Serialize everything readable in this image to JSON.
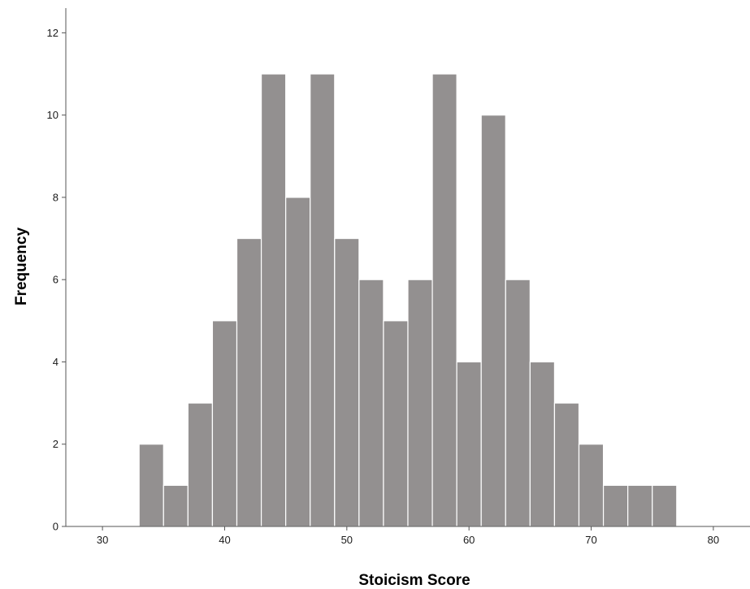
{
  "chart_data": {
    "type": "bar",
    "xlabel": "Stoicism Score",
    "ylabel": "Frequency",
    "xlim": [
      27,
      83
    ],
    "ylim": [
      0,
      12.6
    ],
    "xticks": [
      "30",
      "40",
      "50",
      "60",
      "70",
      "80"
    ],
    "yticks": [
      "0",
      "2",
      "4",
      "6",
      "8",
      "10",
      "12"
    ],
    "bin_width": 2,
    "bins": [
      {
        "start": 33,
        "end": 35,
        "count": 2
      },
      {
        "start": 35,
        "end": 37,
        "count": 1
      },
      {
        "start": 37,
        "end": 39,
        "count": 3
      },
      {
        "start": 39,
        "end": 41,
        "count": 5
      },
      {
        "start": 41,
        "end": 43,
        "count": 7
      },
      {
        "start": 43,
        "end": 45,
        "count": 11
      },
      {
        "start": 45,
        "end": 47,
        "count": 8
      },
      {
        "start": 47,
        "end": 49,
        "count": 11
      },
      {
        "start": 49,
        "end": 51,
        "count": 7
      },
      {
        "start": 51,
        "end": 53,
        "count": 6
      },
      {
        "start": 53,
        "end": 55,
        "count": 5
      },
      {
        "start": 55,
        "end": 57,
        "count": 6
      },
      {
        "start": 57,
        "end": 59,
        "count": 11
      },
      {
        "start": 59,
        "end": 61,
        "count": 4
      },
      {
        "start": 61,
        "end": 63,
        "count": 10
      },
      {
        "start": 63,
        "end": 65,
        "count": 6
      },
      {
        "start": 65,
        "end": 67,
        "count": 4
      },
      {
        "start": 67,
        "end": 69,
        "count": 3
      },
      {
        "start": 69,
        "end": 71,
        "count": 2
      },
      {
        "start": 71,
        "end": 73,
        "count": 1
      },
      {
        "start": 73,
        "end": 75,
        "count": 1
      },
      {
        "start": 75,
        "end": 77,
        "count": 1
      }
    ],
    "bar_color": "#939090",
    "bar_edge_color": "#ffffff",
    "grid": false,
    "legend": "none"
  }
}
